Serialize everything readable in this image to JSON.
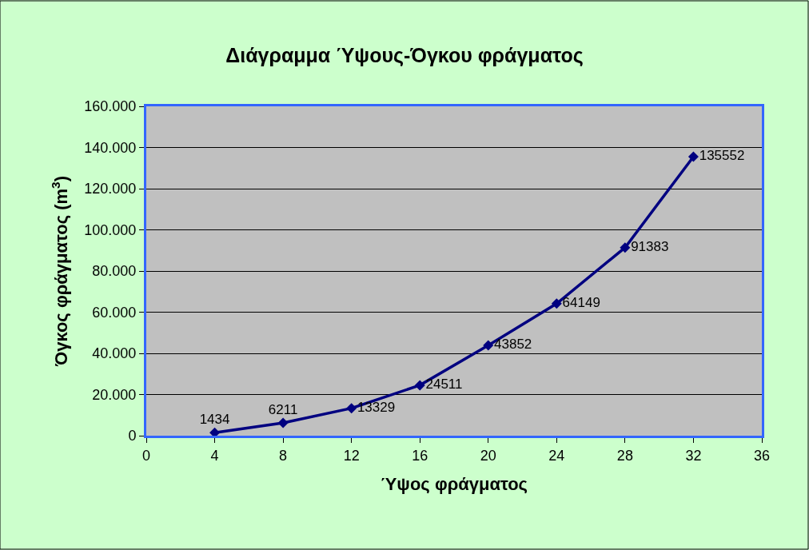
{
  "chart_data": {
    "type": "line",
    "title": "Διάγραμμα Ύψους-Όγκου φράγματος",
    "xlabel": "Ύψος φράγματος",
    "ylabel": "Όγκος φράγματος (m$^{3}$)",
    "x": [
      4,
      8,
      12,
      16,
      20,
      24,
      28,
      32
    ],
    "series": [
      {
        "color": "#000080",
        "values": [
          1434,
          6211,
          13329,
          24511,
          43852,
          64149,
          91383,
          135552
        ]
      }
    ],
    "data_labels": true,
    "marker": "diamond",
    "line_style": "solid",
    "grid": "y",
    "legend": false,
    "xlim": [
      0,
      36
    ],
    "xticks": [
      0,
      4,
      8,
      12,
      16,
      20,
      24,
      28,
      32,
      36
    ],
    "ylim": [
      0,
      160000
    ],
    "yticks": [
      {
        "value": 0,
        "label": "0"
      },
      {
        "value": 20000,
        "label": "20.000"
      },
      {
        "value": 40000,
        "label": "40.000"
      },
      {
        "value": 60000,
        "label": "60.000"
      },
      {
        "value": 80000,
        "label": "80.000"
      },
      {
        "value": 100000,
        "label": "100.000"
      },
      {
        "value": 120000,
        "label": "120.000"
      },
      {
        "value": 140000,
        "label": "140.000"
      },
      {
        "value": 160000,
        "label": "160.000"
      }
    ]
  }
}
